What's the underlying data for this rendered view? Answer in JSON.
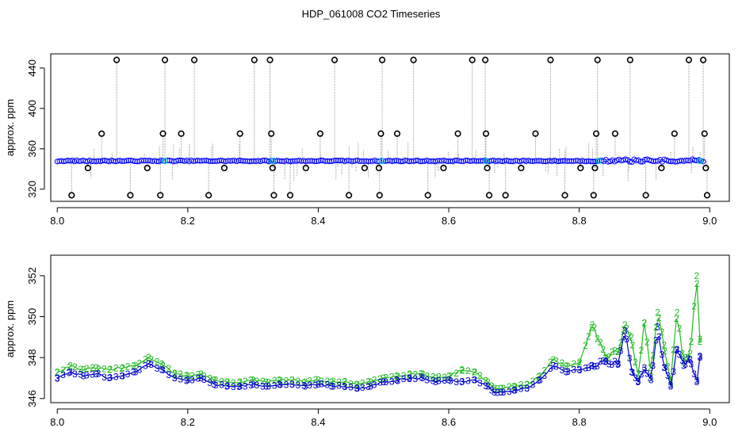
{
  "title": "HDP_061008  CO2 Timeseries",
  "chart_data": [
    {
      "type": "scatter",
      "ylabel": "approx. ppm",
      "xlim": [
        7.99,
        9.03
      ],
      "ylim": [
        308,
        454
      ],
      "x_ticks": [
        8.0,
        8.2,
        8.4,
        8.6,
        8.8,
        9.0
      ],
      "x_tick_labels": [
        "8.0",
        "8.2",
        "8.4",
        "8.6",
        "8.8",
        "9.0"
      ],
      "y_ticks": [
        320,
        360,
        400,
        440
      ],
      "y_tick_labels": [
        "320",
        "360",
        "400",
        "440"
      ],
      "grid": false,
      "baseline_start_x": 8.0,
      "baseline_end_x": 8.99,
      "baseline_value": 348,
      "spikes": [
        {
          "x": 8.022,
          "y": 314
        },
        {
          "x": 8.047,
          "y": 341
        },
        {
          "x": 8.068,
          "y": 375
        },
        {
          "x": 8.091,
          "y": 448
        },
        {
          "x": 8.112,
          "y": 314
        },
        {
          "x": 8.138,
          "y": 341
        },
        {
          "x": 8.158,
          "y": 314
        },
        {
          "x": 8.162,
          "y": 375
        },
        {
          "x": 8.165,
          "y": 448
        },
        {
          "x": 8.19,
          "y": 375
        },
        {
          "x": 8.21,
          "y": 448
        },
        {
          "x": 8.232,
          "y": 314
        },
        {
          "x": 8.256,
          "y": 341
        },
        {
          "x": 8.28,
          "y": 375
        },
        {
          "x": 8.302,
          "y": 448
        },
        {
          "x": 8.326,
          "y": 448
        },
        {
          "x": 8.328,
          "y": 375
        },
        {
          "x": 8.33,
          "y": 341
        },
        {
          "x": 8.332,
          "y": 314
        },
        {
          "x": 8.357,
          "y": 314
        },
        {
          "x": 8.381,
          "y": 341
        },
        {
          "x": 8.403,
          "y": 375
        },
        {
          "x": 8.425,
          "y": 448
        },
        {
          "x": 8.447,
          "y": 314
        },
        {
          "x": 8.471,
          "y": 341
        },
        {
          "x": 8.493,
          "y": 341
        },
        {
          "x": 8.494,
          "y": 314
        },
        {
          "x": 8.496,
          "y": 375
        },
        {
          "x": 8.498,
          "y": 448
        },
        {
          "x": 8.521,
          "y": 375
        },
        {
          "x": 8.546,
          "y": 448
        },
        {
          "x": 8.568,
          "y": 314
        },
        {
          "x": 8.592,
          "y": 341
        },
        {
          "x": 8.614,
          "y": 375
        },
        {
          "x": 8.636,
          "y": 448
        },
        {
          "x": 8.656,
          "y": 448
        },
        {
          "x": 8.657,
          "y": 375
        },
        {
          "x": 8.659,
          "y": 341
        },
        {
          "x": 8.662,
          "y": 314
        },
        {
          "x": 8.687,
          "y": 314
        },
        {
          "x": 8.711,
          "y": 341
        },
        {
          "x": 8.733,
          "y": 375
        },
        {
          "x": 8.756,
          "y": 448
        },
        {
          "x": 8.778,
          "y": 314
        },
        {
          "x": 8.802,
          "y": 341
        },
        {
          "x": 8.822,
          "y": 314
        },
        {
          "x": 8.824,
          "y": 341
        },
        {
          "x": 8.826,
          "y": 375
        },
        {
          "x": 8.828,
          "y": 448
        },
        {
          "x": 8.855,
          "y": 375
        },
        {
          "x": 8.878,
          "y": 448
        },
        {
          "x": 8.902,
          "y": 314
        },
        {
          "x": 8.926,
          "y": 341
        },
        {
          "x": 8.946,
          "y": 375
        },
        {
          "x": 8.968,
          "y": 448
        },
        {
          "x": 8.99,
          "y": 448
        },
        {
          "x": 8.992,
          "y": 375
        },
        {
          "x": 8.994,
          "y": 341
        },
        {
          "x": 8.996,
          "y": 314
        }
      ],
      "colors": {
        "points": "#0000ff",
        "highlight": "#00c8c8",
        "spike_circle": "#000000",
        "trace": "#9a9a9a"
      }
    },
    {
      "type": "line",
      "ylabel": "approx. ppm",
      "xlim": [
        7.99,
        9.03
      ],
      "ylim": [
        345.8,
        353.0
      ],
      "x_ticks": [
        8.0,
        8.2,
        8.4,
        8.6,
        8.8,
        9.0
      ],
      "x_tick_labels": [
        "8.0",
        "8.2",
        "8.4",
        "8.6",
        "8.8",
        "9.0"
      ],
      "y_ticks": [
        346,
        348,
        350,
        352
      ],
      "y_tick_labels": [
        "346",
        "348",
        "350",
        "352"
      ],
      "grid": false,
      "series": [
        {
          "marker": "3",
          "color": "#0000cc",
          "x": [
            8.0,
            8.02,
            8.04,
            8.06,
            8.08,
            8.1,
            8.12,
            8.14,
            8.16,
            8.18,
            8.2,
            8.22,
            8.24,
            8.26,
            8.28,
            8.3,
            8.32,
            8.34,
            8.36,
            8.38,
            8.4,
            8.42,
            8.44,
            8.46,
            8.48,
            8.5,
            8.52,
            8.54,
            8.56,
            8.58,
            8.6,
            8.62,
            8.64,
            8.66,
            8.67,
            8.68,
            8.7,
            8.72,
            8.74,
            8.76,
            8.78,
            8.8,
            8.82,
            8.84,
            8.86,
            8.87,
            8.88,
            8.89,
            8.9,
            8.91,
            8.92,
            8.93,
            8.94,
            8.95,
            8.96,
            8.97,
            8.98,
            8.985
          ],
          "y": [
            347.0,
            347.3,
            347.1,
            347.2,
            347.0,
            347.1,
            347.3,
            347.7,
            347.4,
            347.0,
            346.9,
            347.0,
            346.7,
            346.6,
            346.6,
            346.7,
            346.6,
            346.7,
            346.7,
            346.6,
            346.7,
            346.6,
            346.6,
            346.5,
            346.6,
            346.8,
            346.9,
            347.0,
            347.0,
            346.8,
            346.9,
            346.8,
            346.9,
            346.6,
            346.3,
            346.3,
            346.4,
            346.5,
            346.9,
            347.6,
            347.3,
            347.4,
            347.6,
            347.8,
            347.7,
            349.3,
            347.3,
            346.8,
            347.5,
            346.9,
            349.5,
            347.5,
            346.6,
            348.4,
            347.6,
            347.9,
            346.8,
            348.0
          ]
        },
        {
          "marker": "2",
          "color": "#22bb22",
          "x": [
            8.0,
            8.02,
            8.04,
            8.06,
            8.08,
            8.1,
            8.12,
            8.14,
            8.16,
            8.18,
            8.2,
            8.22,
            8.24,
            8.26,
            8.28,
            8.3,
            8.32,
            8.34,
            8.36,
            8.38,
            8.4,
            8.42,
            8.44,
            8.46,
            8.48,
            8.5,
            8.52,
            8.54,
            8.56,
            8.58,
            8.6,
            8.62,
            8.64,
            8.66,
            8.67,
            8.68,
            8.7,
            8.72,
            8.74,
            8.76,
            8.78,
            8.8,
            8.82,
            8.84,
            8.86,
            8.87,
            8.88,
            8.89,
            8.9,
            8.91,
            8.92,
            8.93,
            8.94,
            8.95,
            8.96,
            8.97,
            8.98,
            8.985
          ],
          "y": [
            347.3,
            347.6,
            347.4,
            347.5,
            347.4,
            347.5,
            347.6,
            348.0,
            347.7,
            347.2,
            347.1,
            347.2,
            346.9,
            346.8,
            346.8,
            346.9,
            346.8,
            346.9,
            346.9,
            346.8,
            346.9,
            346.8,
            346.8,
            346.7,
            346.8,
            347.0,
            347.1,
            347.2,
            347.2,
            347.0,
            347.1,
            347.4,
            347.3,
            346.8,
            346.5,
            346.5,
            346.6,
            346.7,
            347.1,
            347.9,
            347.6,
            347.7,
            349.6,
            348.0,
            348.3,
            349.6,
            349.0,
            347.0,
            349.7,
            347.1,
            350.2,
            348.6,
            346.8,
            350.2,
            347.8,
            348.2,
            352.0,
            348.9
          ]
        }
      ]
    }
  ]
}
